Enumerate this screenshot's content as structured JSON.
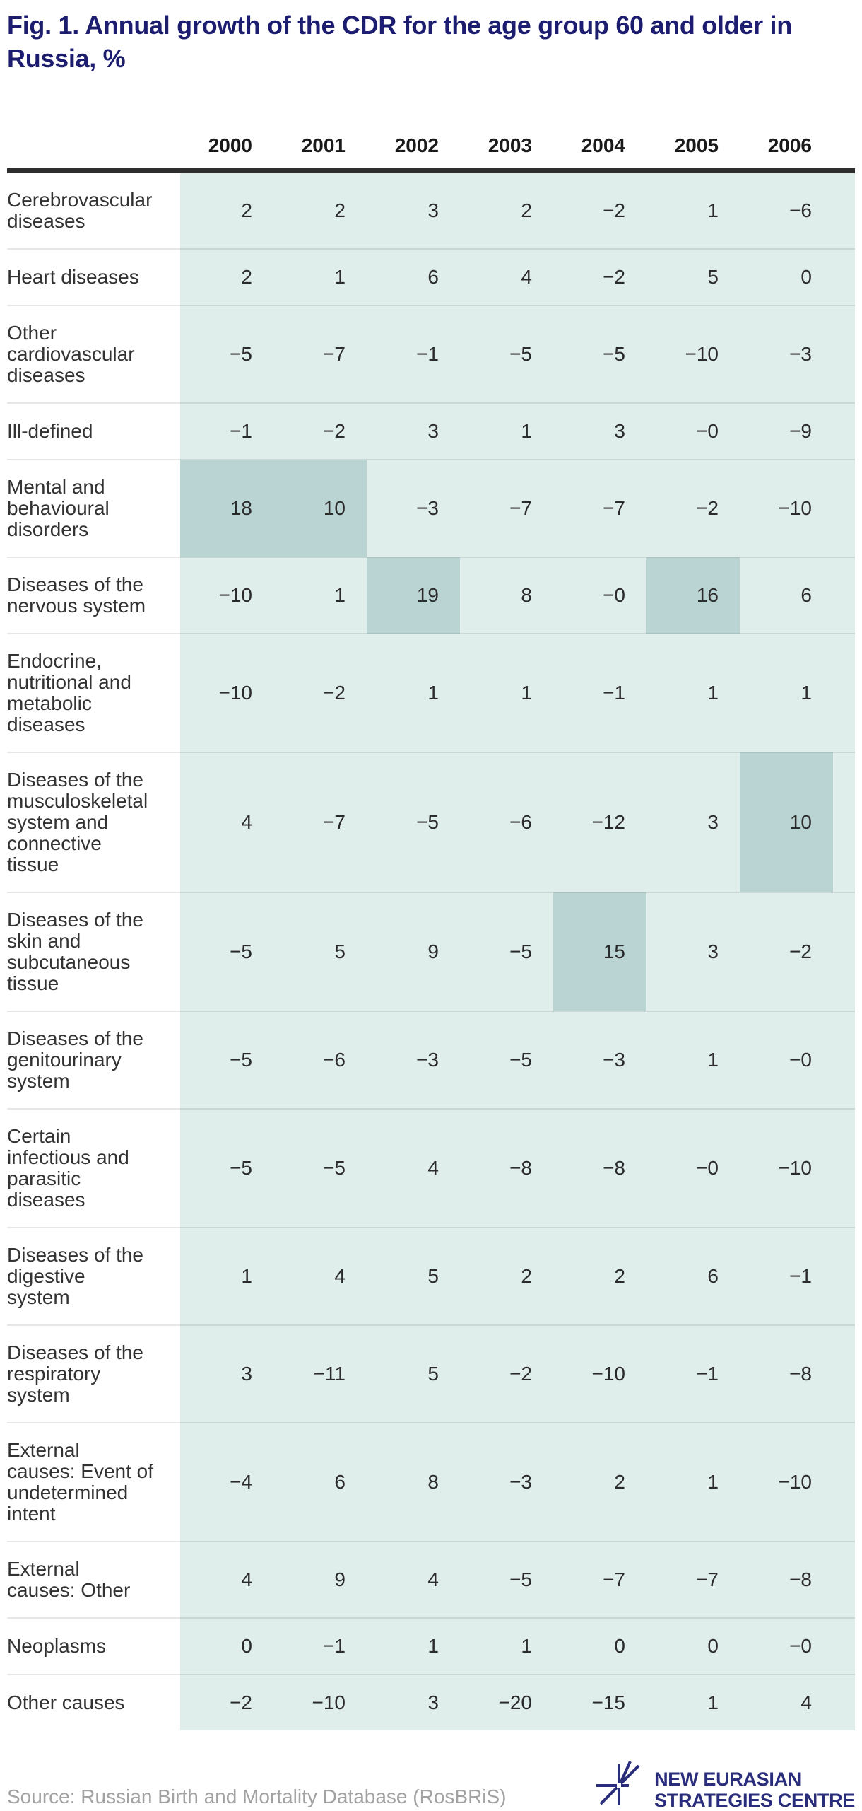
{
  "title": "Fig. 1. Annual growth of the CDR for the age group 60 and older in\nRussia, %",
  "columns": [
    "2000",
    "2001",
    "2002",
    "2003",
    "2004",
    "2005",
    "2006"
  ],
  "rows": [
    {
      "label": "Cerebrovascular\ndiseases",
      "values": [
        "2",
        "2",
        "3",
        "2",
        "−2",
        "1",
        "−6"
      ]
    },
    {
      "label": "Heart diseases",
      "values": [
        "2",
        "1",
        "6",
        "4",
        "−2",
        "5",
        "0"
      ]
    },
    {
      "label": "Other\ncardiovascular\ndiseases",
      "values": [
        "−5",
        "−7",
        "−1",
        "−5",
        "−5",
        "−10",
        "−3"
      ]
    },
    {
      "label": "Ill-defined",
      "values": [
        "−1",
        "−2",
        "3",
        "1",
        "3",
        "−0",
        "−9"
      ]
    },
    {
      "label": "Mental and\nbehavioural\ndisorders",
      "values": [
        "18",
        "10",
        "−3",
        "−7",
        "−7",
        "−2",
        "−10"
      ]
    },
    {
      "label": "Diseases of the\nnervous system",
      "values": [
        "−10",
        "1",
        "19",
        "8",
        "−0",
        "16",
        "6"
      ]
    },
    {
      "label": "Endocrine,\nnutritional and\nmetabolic\ndiseases",
      "values": [
        "−10",
        "−2",
        "1",
        "1",
        "−1",
        "1",
        "1"
      ]
    },
    {
      "label": "Diseases of the\nmusculoskeletal\nsystem and\nconnective\ntissue",
      "values": [
        "4",
        "−7",
        "−5",
        "−6",
        "−12",
        "3",
        "10"
      ]
    },
    {
      "label": "Diseases of the\nskin and\nsubcutaneous\ntissue",
      "values": [
        "−5",
        "5",
        "9",
        "−5",
        "15",
        "3",
        "−2"
      ]
    },
    {
      "label": "Diseases of the\ngenitourinary\nsystem",
      "values": [
        "−5",
        "−6",
        "−3",
        "−5",
        "−3",
        "1",
        "−0"
      ]
    },
    {
      "label": "Certain\ninfectious and\nparasitic\ndiseases",
      "values": [
        "−5",
        "−5",
        "4",
        "−8",
        "−8",
        "−0",
        "−10"
      ]
    },
    {
      "label": "Diseases of the\ndigestive\nsystem",
      "values": [
        "1",
        "4",
        "5",
        "2",
        "2",
        "6",
        "−1"
      ]
    },
    {
      "label": "Diseases of the\nrespiratory\nsystem",
      "values": [
        "3",
        "−11",
        "5",
        "−2",
        "−10",
        "−1",
        "−8"
      ]
    },
    {
      "label": "External\ncauses: Event of\nundetermined\nintent",
      "values": [
        "−4",
        "6",
        "8",
        "−3",
        "2",
        "1",
        "−10"
      ]
    },
    {
      "label": "External\ncauses: Other",
      "values": [
        "4",
        "9",
        "4",
        "−5",
        "−7",
        "−7",
        "−8"
      ]
    },
    {
      "label": "Neoplasms",
      "values": [
        "0",
        "−1",
        "1",
        "1",
        "0",
        "0",
        "−0"
      ]
    },
    {
      "label": "Other causes",
      "values": [
        "−2",
        "−10",
        "3",
        "−20",
        "−15",
        "1",
        "4"
      ]
    }
  ],
  "source": "Source: Russian Birth and Mortality Database (RosBRiS)",
  "logo": {
    "line1": "NEW EURASIAN",
    "line2": "STRATEGIES CENTRE"
  },
  "colors": {
    "title": "#1d1d70",
    "cell": "#dfedeb",
    "cell_highlight": "#b9d4d2",
    "header_rule": "#2e2e2e",
    "source_text": "#a2a2a2",
    "logo": "#2a2d7c"
  },
  "chart_data": {
    "type": "heatmap",
    "title": "Fig. 1. Annual growth of the CDR for the age group 60 and older in Russia, %",
    "x": [
      "2000",
      "2001",
      "2002",
      "2003",
      "2004",
      "2005",
      "2006"
    ],
    "rows": [
      {
        "name": "Cerebrovascular diseases",
        "values": [
          2,
          2,
          3,
          2,
          -2,
          1,
          -6
        ]
      },
      {
        "name": "Heart diseases",
        "values": [
          2,
          1,
          6,
          4,
          -2,
          5,
          0
        ]
      },
      {
        "name": "Other cardiovascular diseases",
        "values": [
          -5,
          -7,
          -1,
          -5,
          -5,
          -10,
          -3
        ]
      },
      {
        "name": "Ill-defined",
        "values": [
          -1,
          -2,
          3,
          1,
          3,
          0,
          -9
        ]
      },
      {
        "name": "Mental and behavioural disorders",
        "values": [
          18,
          10,
          -3,
          -7,
          -7,
          -2,
          -10
        ]
      },
      {
        "name": "Diseases of the nervous system",
        "values": [
          -10,
          1,
          19,
          8,
          0,
          16,
          6
        ]
      },
      {
        "name": "Endocrine, nutritional and metabolic diseases",
        "values": [
          -10,
          -2,
          1,
          1,
          -1,
          1,
          1
        ]
      },
      {
        "name": "Diseases of the musculoskeletal system and connective tissue",
        "values": [
          4,
          -7,
          -5,
          -6,
          -12,
          3,
          10
        ]
      },
      {
        "name": "Diseases of the skin and subcutaneous tissue",
        "values": [
          -5,
          5,
          9,
          -5,
          15,
          3,
          -2
        ]
      },
      {
        "name": "Diseases of the genitourinary system",
        "values": [
          -5,
          -6,
          -3,
          -5,
          -3,
          1,
          0
        ]
      },
      {
        "name": "Certain infectious and parasitic diseases",
        "values": [
          -5,
          -5,
          4,
          -8,
          -8,
          0,
          -10
        ]
      },
      {
        "name": "Diseases of the digestive system",
        "values": [
          1,
          4,
          5,
          2,
          2,
          6,
          -1
        ]
      },
      {
        "name": "Diseases of the respiratory system",
        "values": [
          3,
          -11,
          5,
          -2,
          -10,
          -1,
          -8
        ]
      },
      {
        "name": "External causes: Event of undetermined intent",
        "values": [
          -4,
          6,
          8,
          -3,
          2,
          1,
          -10
        ]
      },
      {
        "name": "External causes: Other",
        "values": [
          4,
          9,
          4,
          -5,
          -7,
          -7,
          -8
        ]
      },
      {
        "name": "Neoplasms",
        "values": [
          0,
          -1,
          1,
          1,
          0,
          0,
          0
        ]
      },
      {
        "name": "Other causes",
        "values": [
          -2,
          -10,
          3,
          -20,
          -15,
          1,
          4
        ]
      }
    ],
    "highlight_rule": "cells with value >= 10 shaded darker",
    "legend": "none",
    "grid": "horizontal row separators",
    "unit": "%"
  }
}
